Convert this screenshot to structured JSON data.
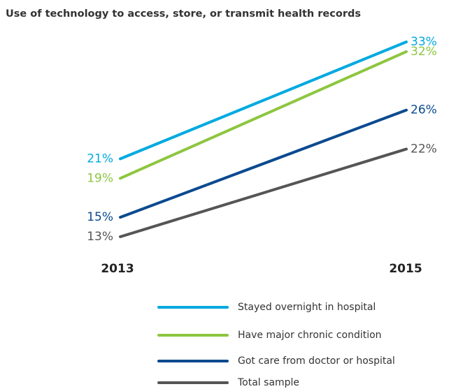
{
  "chart_data": {
    "type": "line",
    "title": "Use of technology to access, store, or transmit health records",
    "categories": [
      "2013",
      "2015"
    ],
    "series": [
      {
        "name": "Stayed overnight in hospital",
        "color": "#00a9e0",
        "values": [
          21,
          33
        ],
        "value_labels": [
          "21%",
          "33%"
        ]
      },
      {
        "name": "Have major chronic condition",
        "color": "#8dc63f",
        "values": [
          19,
          32
        ],
        "value_labels": [
          "19%",
          "32%"
        ]
      },
      {
        "name": "Got care from doctor or hospital",
        "color": "#0b4a8f",
        "values": [
          15,
          26
        ],
        "value_labels": [
          "15%",
          "26%"
        ]
      },
      {
        "name": "Total sample",
        "color": "#555555",
        "values": [
          13,
          22
        ],
        "value_labels": [
          "13%",
          "22%"
        ]
      }
    ]
  }
}
